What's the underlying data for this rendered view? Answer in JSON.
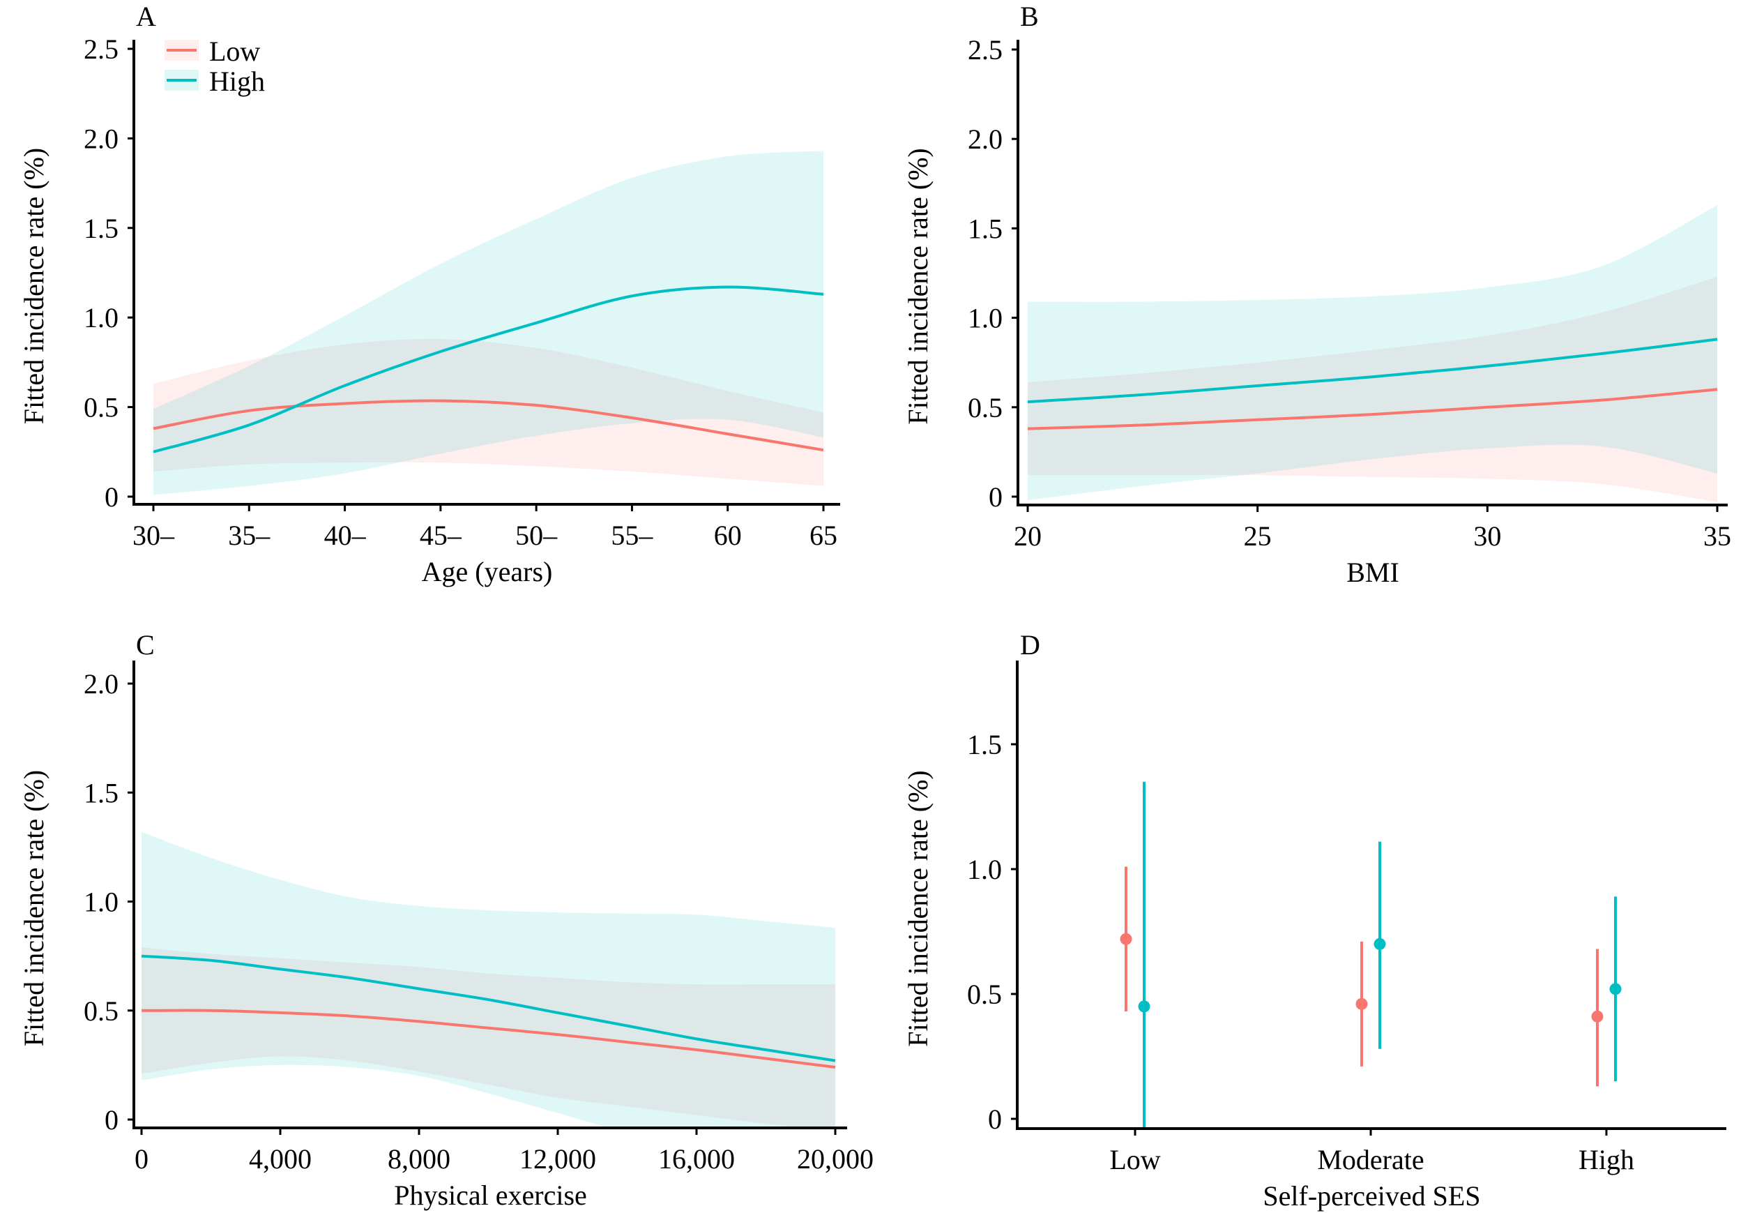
{
  "figure": {
    "colors": {
      "low": "#F8766D",
      "high": "#00BFC4",
      "low_band": "#F8766D",
      "high_band": "#00BFC4",
      "band_opacity": 0.12,
      "axis": "#000000"
    },
    "legend": {
      "placement": "top-left of panel A",
      "items": [
        {
          "key": "low",
          "label": "Low"
        },
        {
          "key": "high",
          "label": "High"
        }
      ]
    }
  },
  "chart_data": [
    {
      "panel": "A",
      "type": "line",
      "title": "A",
      "xlabel": "Age (years)",
      "ylabel": "Fitted incidence rate (%)",
      "xlim": [
        30,
        65
      ],
      "ylim": [
        0,
        2.5
      ],
      "xticks": [
        30,
        35,
        40,
        45,
        50,
        55,
        60,
        65
      ],
      "xtick_labels": [
        "30–",
        "35–",
        "40–",
        "45–",
        "50–",
        "55–",
        "60",
        "65"
      ],
      "yticks": [
        0,
        0.5,
        1.0,
        1.5,
        2.0,
        2.5
      ],
      "ytick_labels": [
        "0",
        "0.5",
        "1.0",
        "1.5",
        "2.0",
        "2.5"
      ],
      "grid": false,
      "legend": "top-left",
      "x": [
        30,
        35,
        40,
        45,
        50,
        55,
        60,
        65
      ],
      "series": [
        {
          "name": "Low",
          "key": "low",
          "values": [
            0.38,
            0.48,
            0.52,
            0.535,
            0.51,
            0.44,
            0.35,
            0.26
          ],
          "ci_lower": [
            0.14,
            0.18,
            0.19,
            0.19,
            0.17,
            0.14,
            0.1,
            0.06
          ],
          "ci_upper": [
            0.63,
            0.76,
            0.85,
            0.88,
            0.83,
            0.72,
            0.59,
            0.47
          ]
        },
        {
          "name": "High",
          "key": "high",
          "values": [
            0.25,
            0.4,
            0.62,
            0.81,
            0.97,
            1.12,
            1.17,
            1.13
          ],
          "ci_lower": [
            0.01,
            0.06,
            0.13,
            0.24,
            0.34,
            0.41,
            0.43,
            0.33
          ],
          "ci_upper": [
            0.49,
            0.73,
            1.01,
            1.3,
            1.55,
            1.78,
            1.9,
            1.93
          ]
        }
      ]
    },
    {
      "panel": "B",
      "type": "line",
      "title": "B",
      "xlabel": "BMI",
      "ylabel": "Fitted incidence rate (%)",
      "xlim": [
        20,
        35
      ],
      "ylim": [
        0,
        2.5
      ],
      "xticks": [
        20,
        25,
        30,
        35
      ],
      "xtick_labels": [
        "20",
        "25",
        "30",
        "35"
      ],
      "yticks": [
        0,
        0.5,
        1.0,
        1.5,
        2.0,
        2.5
      ],
      "ytick_labels": [
        "0",
        "0.5",
        "1.0",
        "1.5",
        "2.0",
        "2.5"
      ],
      "grid": false,
      "x": [
        20,
        22.5,
        25,
        27.5,
        30,
        32.5,
        35
      ],
      "series": [
        {
          "name": "Low",
          "key": "low",
          "values": [
            0.38,
            0.4,
            0.43,
            0.46,
            0.5,
            0.54,
            0.6
          ],
          "ci_lower": [
            0.12,
            0.12,
            0.12,
            0.11,
            0.1,
            0.07,
            -0.03
          ],
          "ci_upper": [
            0.64,
            0.69,
            0.75,
            0.82,
            0.9,
            1.03,
            1.23
          ]
        },
        {
          "name": "High",
          "key": "high",
          "values": [
            0.53,
            0.57,
            0.62,
            0.67,
            0.73,
            0.8,
            0.88
          ],
          "ci_lower": [
            -0.02,
            0.06,
            0.13,
            0.21,
            0.27,
            0.28,
            0.13
          ],
          "ci_upper": [
            1.09,
            1.09,
            1.1,
            1.12,
            1.17,
            1.29,
            1.63
          ]
        }
      ]
    },
    {
      "panel": "C",
      "type": "line",
      "title": "C",
      "xlabel": "Physical exercise",
      "ylabel": "Fitted incidence rate (%)",
      "xlim": [
        0,
        20000
      ],
      "ylim": [
        0,
        2.0
      ],
      "xticks": [
        0,
        4000,
        8000,
        12000,
        16000,
        20000
      ],
      "xtick_labels": [
        "0",
        "4,000",
        "8,000",
        "12,000",
        "16,000",
        "20,000"
      ],
      "yticks": [
        0,
        0.5,
        1.0,
        1.5,
        2.0
      ],
      "ytick_labels": [
        "0",
        "0.5",
        "1.0",
        "1.5",
        "2.0"
      ],
      "grid": false,
      "x": [
        0,
        2000,
        4000,
        6000,
        8000,
        10000,
        12000,
        14000,
        16000,
        18000,
        20000
      ],
      "series": [
        {
          "name": "Low",
          "key": "low",
          "values": [
            0.5,
            0.5,
            0.49,
            0.475,
            0.45,
            0.42,
            0.39,
            0.355,
            0.32,
            0.28,
            0.24
          ],
          "ci_lower": [
            0.21,
            0.26,
            0.29,
            0.27,
            0.22,
            0.16,
            0.1,
            0.06,
            0.02,
            -0.02,
            -0.06
          ],
          "ci_upper": [
            0.79,
            0.76,
            0.74,
            0.72,
            0.7,
            0.67,
            0.65,
            0.63,
            0.62,
            0.62,
            0.62
          ]
        },
        {
          "name": "High",
          "key": "high",
          "values": [
            0.75,
            0.73,
            0.69,
            0.65,
            0.6,
            0.55,
            0.49,
            0.43,
            0.37,
            0.32,
            0.27
          ],
          "ci_lower": [
            0.18,
            0.23,
            0.25,
            0.24,
            0.2,
            0.12,
            0.03,
            -0.06,
            -0.12,
            -0.16,
            -0.2
          ],
          "ci_upper": [
            1.32,
            1.2,
            1.1,
            1.02,
            0.98,
            0.96,
            0.95,
            0.945,
            0.94,
            0.91,
            0.88
          ]
        }
      ]
    },
    {
      "panel": "D",
      "type": "scatter",
      "subtype": "pointrange",
      "title": "D",
      "xlabel": "Self-perceived SES",
      "ylabel": "Fitted incidence rate (%)",
      "categories": [
        "Low",
        "Moderate",
        "High"
      ],
      "ylim": [
        0,
        1.82
      ],
      "yticks": [
        0,
        0.5,
        1.0,
        1.5
      ],
      "ytick_labels": [
        "0",
        "0.5",
        "1.0",
        "1.5"
      ],
      "grid": false,
      "series": [
        {
          "name": "Low",
          "key": "low",
          "values": [
            0.72,
            0.46,
            0.41
          ],
          "ci_lower": [
            0.43,
            0.21,
            0.13
          ],
          "ci_upper": [
            1.01,
            0.71,
            0.68
          ]
        },
        {
          "name": "High",
          "key": "high",
          "values": [
            0.45,
            0.7,
            0.52
          ],
          "ci_lower": [
            -0.04,
            0.28,
            0.15
          ],
          "ci_upper": [
            1.35,
            1.11,
            0.89
          ]
        }
      ]
    }
  ]
}
